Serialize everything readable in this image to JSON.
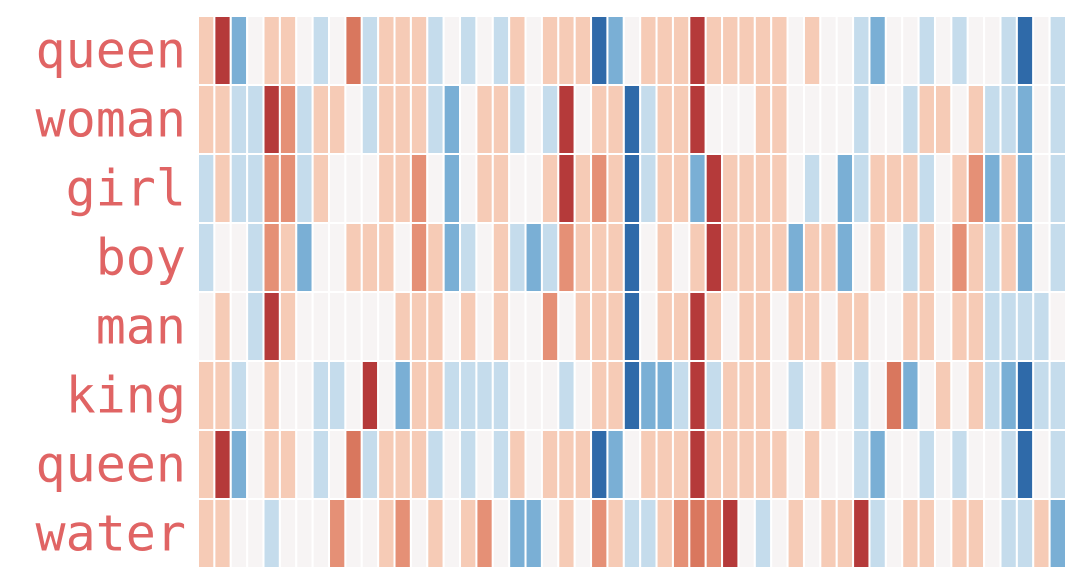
{
  "chart_data": {
    "type": "heatmap",
    "title": "",
    "xlabel": "",
    "ylabel": "",
    "value_range": [
      -4,
      4
    ],
    "colors": {
      "-4": "#2f6aa9",
      "-3": "#4d88c1",
      "-2": "#7aafd5",
      "-1": "#c5dcec",
      "0": "#f7f4f4",
      "1": "#f6cbb6",
      "2": "#e59076",
      "3": "#d9775e",
      "4": "#b53a3a"
    },
    "rows": [
      {
        "label": "queen",
        "values": [
          1,
          4,
          -2,
          0,
          1,
          1,
          0,
          -1,
          0,
          3,
          -1,
          1,
          1,
          1,
          -1,
          0,
          -1,
          0,
          -1,
          1,
          0,
          1,
          1,
          1,
          -4,
          -2,
          0,
          1,
          1,
          1,
          4,
          1,
          1,
          1,
          1,
          1,
          0,
          1,
          0,
          0,
          -1,
          -2,
          0,
          0,
          -1,
          0,
          -1,
          0,
          0,
          -1,
          -4,
          0,
          -1
        ]
      },
      {
        "label": "woman",
        "values": [
          1,
          1,
          -1,
          -1,
          4,
          2,
          -1,
          1,
          1,
          0,
          -1,
          1,
          1,
          1,
          -1,
          -2,
          0,
          1,
          1,
          -1,
          0,
          -1,
          4,
          0,
          1,
          1,
          -4,
          -1,
          1,
          1,
          4,
          0,
          0,
          0,
          1,
          1,
          0,
          0,
          0,
          0,
          -1,
          0,
          0,
          -1,
          1,
          1,
          0,
          1,
          -1,
          -1,
          -2,
          0,
          -1
        ]
      },
      {
        "label": "girl",
        "values": [
          -1,
          1,
          -1,
          -1,
          2,
          2,
          -1,
          1,
          0,
          0,
          0,
          1,
          1,
          2,
          0,
          -2,
          0,
          1,
          1,
          0,
          0,
          1,
          4,
          1,
          2,
          1,
          -4,
          -1,
          1,
          1,
          -2,
          4,
          1,
          1,
          1,
          1,
          0,
          -1,
          0,
          -2,
          -1,
          1,
          1,
          1,
          -1,
          0,
          1,
          2,
          -2,
          1,
          -2,
          0,
          -1
        ]
      },
      {
        "label": "boy",
        "values": [
          -1,
          0,
          0,
          -1,
          2,
          1,
          -2,
          0,
          0,
          1,
          1,
          1,
          0,
          2,
          1,
          -2,
          -1,
          0,
          1,
          -1,
          -2,
          -1,
          2,
          1,
          1,
          1,
          -4,
          0,
          1,
          0,
          1,
          4,
          1,
          1,
          1,
          1,
          -2,
          1,
          1,
          -2,
          0,
          1,
          0,
          -1,
          1,
          0,
          2,
          1,
          -1,
          1,
          -2,
          0,
          -1
        ]
      },
      {
        "label": "man",
        "values": [
          0,
          1,
          0,
          -1,
          4,
          1,
          0,
          0,
          0,
          0,
          0,
          0,
          1,
          1,
          1,
          0,
          1,
          0,
          1,
          0,
          0,
          2,
          0,
          1,
          1,
          1,
          -4,
          0,
          1,
          1,
          4,
          1,
          0,
          1,
          1,
          0,
          1,
          1,
          0,
          1,
          1,
          0,
          0,
          1,
          1,
          0,
          1,
          1,
          -1,
          -1,
          -1,
          -1,
          0
        ]
      },
      {
        "label": "king",
        "values": [
          1,
          1,
          -1,
          0,
          1,
          0,
          0,
          -1,
          -1,
          0,
          4,
          0,
          -2,
          1,
          1,
          -1,
          -1,
          -1,
          -1,
          0,
          0,
          0,
          -1,
          0,
          1,
          1,
          -4,
          -2,
          -2,
          -1,
          4,
          -1,
          1,
          1,
          1,
          0,
          -1,
          0,
          1,
          0,
          -1,
          0,
          3,
          -2,
          0,
          1,
          0,
          1,
          -1,
          -2,
          -4,
          -1,
          -1
        ]
      },
      {
        "label": "queen",
        "values": [
          1,
          4,
          -2,
          0,
          1,
          1,
          0,
          -1,
          0,
          3,
          -1,
          1,
          1,
          1,
          -1,
          0,
          -1,
          0,
          -1,
          1,
          0,
          1,
          1,
          1,
          -4,
          -2,
          0,
          1,
          1,
          1,
          4,
          1,
          1,
          1,
          1,
          1,
          0,
          1,
          0,
          0,
          -1,
          -2,
          0,
          0,
          -1,
          0,
          -1,
          0,
          0,
          -1,
          -4,
          0,
          -1
        ]
      },
      {
        "label": "water",
        "values": [
          1,
          1,
          0,
          0,
          -1,
          0,
          0,
          0,
          2,
          0,
          0,
          1,
          2,
          0,
          1,
          0,
          1,
          2,
          0,
          -2,
          -2,
          0,
          1,
          0,
          2,
          1,
          -1,
          -1,
          1,
          2,
          3,
          2,
          4,
          0,
          -1,
          0,
          1,
          0,
          1,
          1,
          4,
          -1,
          0,
          1,
          1,
          0,
          1,
          1,
          0,
          -1,
          -1,
          1,
          -2
        ]
      }
    ]
  }
}
